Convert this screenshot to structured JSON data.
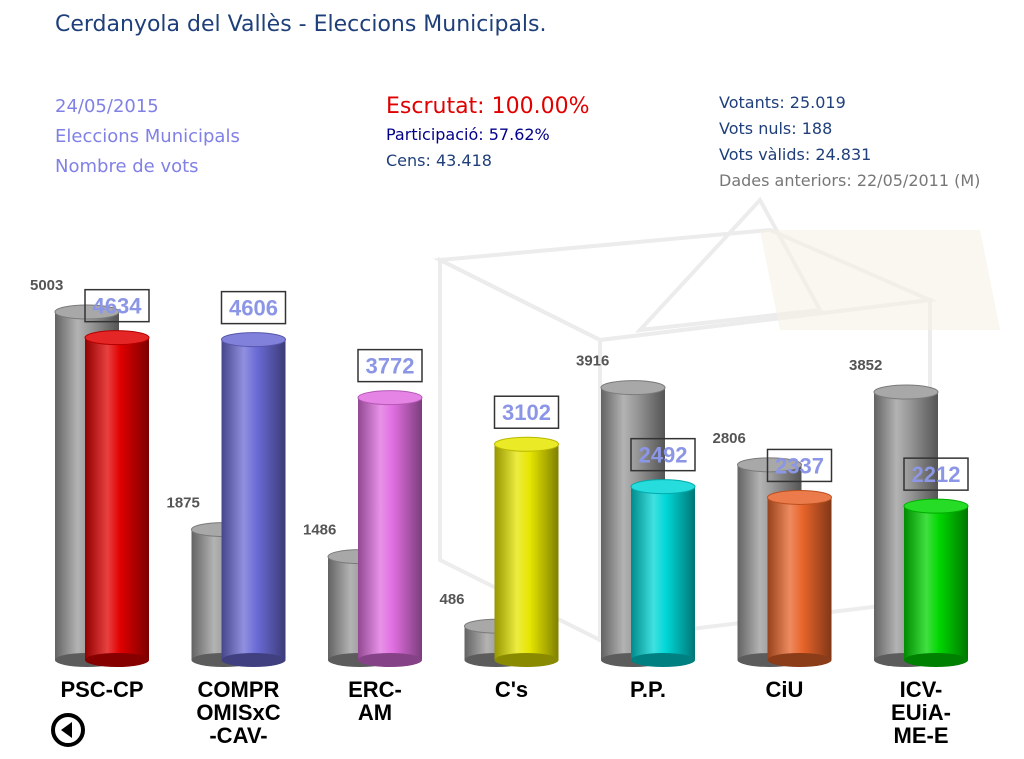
{
  "header": {
    "title": "Cerdanyola del Vallès - Eleccions Municipals."
  },
  "info": {
    "date": "24/05/2015",
    "election": "Eleccions Municipals",
    "metric": "Nombre de vots",
    "escrutat": "Escrutat: 100.00%",
    "participacio": "Participació: 57.62%",
    "cens": "Cens: 43.418",
    "votants": "Votants: 25.019",
    "vots_nuls": "Vots nuls: 188",
    "vots_valids": "Vots vàlids: 24.831",
    "dades_anteriors": "Dades anteriors: 22/05/2011 (M)"
  },
  "nav": {
    "back_icon": "back-arrow-circle-icon"
  },
  "chart_data": {
    "type": "bar",
    "categories": [
      "PSC-CP",
      "COMPR OMISxC -CAV-",
      "ERC- AM",
      "C's",
      "P.P.",
      "CiU",
      "ICV- EUiA- ME-E"
    ],
    "category_lines": [
      [
        "PSC-CP"
      ],
      [
        "COMPR",
        "OMISxC",
        "-CAV-"
      ],
      [
        "ERC-",
        "AM"
      ],
      [
        "C's"
      ],
      [
        "P.P."
      ],
      [
        "CiU"
      ],
      [
        "ICV-",
        "EUiA-",
        "ME-E"
      ]
    ],
    "series": [
      {
        "values": [
          5003,
          1875,
          1486,
          486,
          3916,
          2806,
          3852
        ],
        "color": "#999999"
      },
      {
        "values": [
          4634,
          4606,
          3772,
          3102,
          2492,
          2337,
          2212
        ],
        "colors": [
          "#e00000",
          "#6b6bd6",
          "#e06ee0",
          "#e6e600",
          "#00d6d6",
          "#e8642a",
          "#00d600"
        ]
      }
    ],
    "ylim": [
      0,
      5003
    ],
    "label_colors": {
      "previous": "#555555",
      "current": "#8c96e6"
    }
  }
}
